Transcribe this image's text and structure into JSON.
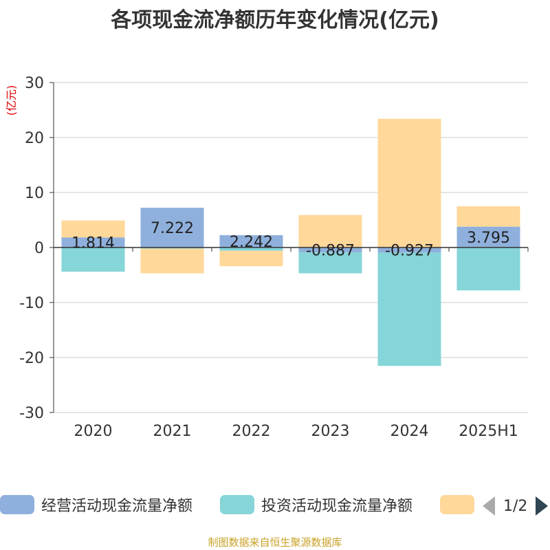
{
  "title": "各项现金流净额历年变化情况(亿元)",
  "chart_data": {
    "type": "bar",
    "stacked": true,
    "categories": [
      "2020",
      "2021",
      "2022",
      "2023",
      "2024",
      "2025H1"
    ],
    "ylabel": "(亿元)",
    "ylim": [
      -30,
      30
    ],
    "yticks": [
      30,
      20,
      10,
      0,
      -10,
      -20,
      -30
    ],
    "grid": true,
    "legend_position": "bottom",
    "series": [
      {
        "name": "经营活动现金流量净额",
        "color": "#8fb0dc",
        "values": [
          1.814,
          7.222,
          2.242,
          -0.887,
          -0.927,
          3.795
        ],
        "labels": [
          "1.814",
          "7.222",
          "2.242",
          "-0.887",
          "-0.927",
          "3.795"
        ]
      },
      {
        "name": "投资活动现金流量净额",
        "color": "#86d5d8",
        "values": [
          -4.4,
          -0.2,
          -0.6,
          -3.8,
          -20.6,
          -7.8
        ]
      },
      {
        "name": "",
        "color": "#ffd89a",
        "values": [
          3.1,
          -4.5,
          -2.8,
          5.9,
          23.4,
          3.7
        ]
      }
    ]
  },
  "legend": {
    "pager": "1/2"
  },
  "footer": "制图数据来自恒生聚源数据库"
}
